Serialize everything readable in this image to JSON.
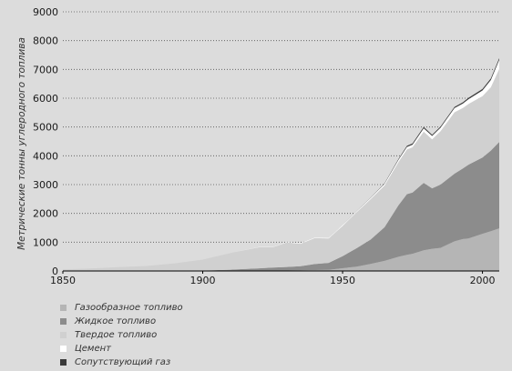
{
  "chart_data": {
    "type": "area",
    "stacked": true,
    "ylabel": "Метрические тонны углеродного топлива",
    "xlabel": "",
    "xlim": [
      1850,
      2006
    ],
    "ylim": [
      0,
      9000
    ],
    "x_ticks": [
      1850,
      1900,
      1950,
      2000
    ],
    "y_ticks": [
      0,
      1000,
      2000,
      3000,
      4000,
      5000,
      6000,
      7000,
      8000,
      9000
    ],
    "y_tick_labels": [
      "0",
      "1000",
      "2000",
      "3000",
      "4000",
      "5000",
      "6000",
      "7000",
      "8000",
      "9000"
    ],
    "grid": "dotted-horizontal",
    "legend_position": "bottom-left",
    "x": [
      1850,
      1860,
      1870,
      1880,
      1890,
      1900,
      1910,
      1920,
      1925,
      1930,
      1935,
      1940,
      1945,
      1950,
      1955,
      1960,
      1965,
      1970,
      1973,
      1975,
      1979,
      1982,
      1985,
      1990,
      1993,
      1995,
      2000,
      2003,
      2006
    ],
    "series": [
      {
        "name": "Газообразное топливо",
        "color": "#b5b5b5",
        "values": [
          0,
          0,
          0,
          0,
          0,
          0,
          0,
          5,
          10,
          15,
          20,
          30,
          40,
          95,
          150,
          245,
          350,
          495,
          560,
          595,
          720,
          770,
          800,
          1030,
          1110,
          1130,
          1290,
          1380,
          1480
        ]
      },
      {
        "name": "Жидкое топливо",
        "color": "#8c8c8c",
        "values": [
          0,
          0,
          0,
          0,
          3,
          15,
          45,
          85,
          110,
          125,
          145,
          210,
          240,
          420,
          640,
          845,
          1170,
          1790,
          2110,
          2130,
          2340,
          2100,
          2200,
          2350,
          2450,
          2560,
          2650,
          2800,
          3000
        ]
      },
      {
        "name": "Твердое топливо",
        "color": "#d0d0d0",
        "values": [
          55,
          85,
          135,
          175,
          260,
          380,
          580,
          730,
          700,
          850,
          780,
          900,
          850,
          1050,
          1250,
          1400,
          1450,
          1500,
          1550,
          1570,
          1780,
          1700,
          1850,
          2130,
          2100,
          2110,
          2130,
          2200,
          2540
        ]
      },
      {
        "name": "Цемент",
        "color": "#ffffff",
        "values": [
          0,
          0,
          0,
          0,
          0,
          0,
          0,
          10,
          10,
          12,
          14,
          18,
          20,
          24,
          32,
          43,
          58,
          78,
          88,
          92,
          115,
          120,
          125,
          145,
          155,
          165,
          200,
          250,
          310
        ]
      },
      {
        "name": "Сопутствующий газ",
        "color": "#3a3a3a",
        "values": [
          0,
          0,
          0,
          0,
          0,
          0,
          0,
          0,
          0,
          0,
          0,
          0,
          0,
          3,
          5,
          8,
          15,
          30,
          38,
          40,
          45,
          40,
          40,
          40,
          42,
          45,
          50,
          55,
          60
        ]
      }
    ]
  }
}
